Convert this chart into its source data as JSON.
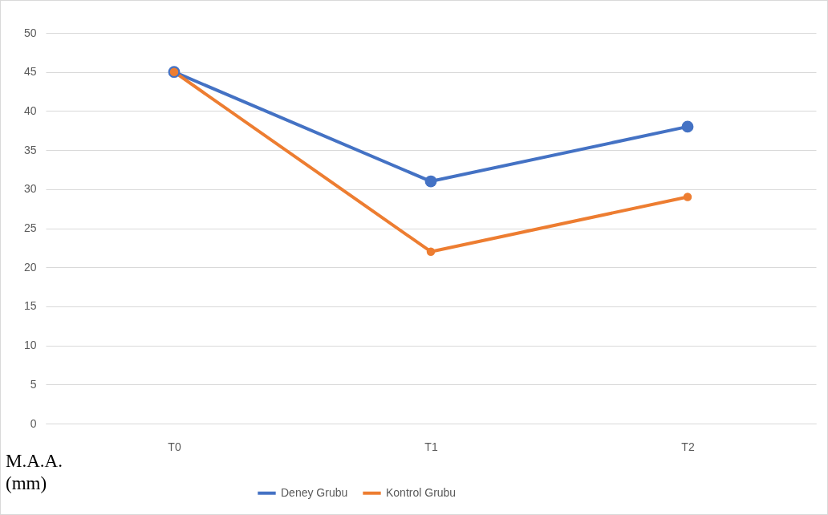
{
  "chart_data": {
    "type": "line",
    "ylabel": "M.A.A. (mm)",
    "categories": [
      "T0",
      "T1",
      "T2"
    ],
    "series": [
      {
        "name": "Deney Grubu",
        "color": "#4472c4",
        "values": [
          45,
          31,
          38
        ]
      },
      {
        "name": "Kontrol Grubu",
        "color": "#ed7d31",
        "values": [
          45,
          22,
          29
        ]
      }
    ],
    "ylim": [
      0,
      50
    ],
    "yticks": [
      0,
      5,
      10,
      15,
      20,
      25,
      30,
      35,
      40,
      45,
      50
    ],
    "grid": "y",
    "legend": "bottom",
    "marker": "circle",
    "line_style": "solid"
  }
}
